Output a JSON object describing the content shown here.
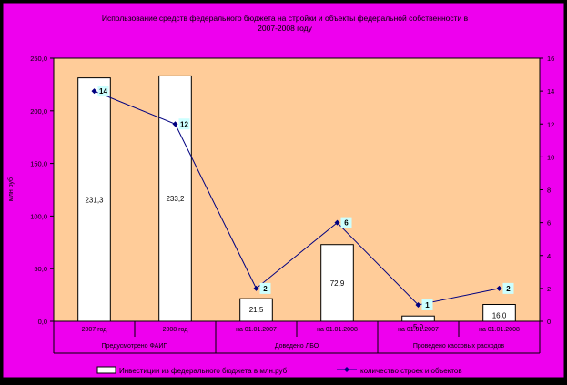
{
  "chart_data": {
    "type": "bar",
    "title_line1": "Использование средств федерального бюджета на стройки и объекты федеральной собственности в",
    "title_line2": "2007-2008 году",
    "ylabel": "млн руб",
    "ylim": [
      0,
      250
    ],
    "y_ticks": [
      "0,0",
      "50,0",
      "100,0",
      "150,0",
      "200,0",
      "250,0"
    ],
    "y2lim": [
      0,
      16
    ],
    "y2_ticks": [
      "0",
      "2",
      "4",
      "6",
      "8",
      "10",
      "12",
      "14",
      "16"
    ],
    "categories": [
      "2007 год",
      "2008 год",
      "на 01.01.2007",
      "на 01.01.2008",
      "на 01.01.2007",
      "на 01.01.2008"
    ],
    "groups": [
      "Предусмотрено ФАИП",
      "Доведено ЛБО",
      "Проведено кассовых расходов"
    ],
    "series": [
      {
        "name": "Инвестиции из федерального бюджета в млн.руб",
        "type": "bar",
        "values": [
          231.3,
          233.2,
          21.5,
          72.9,
          5.0,
          16.0
        ],
        "labels": [
          "231,3",
          "233,2",
          "21,5",
          "72,9",
          "5,0",
          "16,0"
        ]
      },
      {
        "name": "количество строек и объектов",
        "type": "line",
        "axis": "secondary",
        "values": [
          14,
          12,
          2,
          6,
          1,
          2
        ],
        "labels": [
          "14",
          "12",
          "2",
          "6",
          "1",
          "2"
        ]
      }
    ],
    "colors": {
      "outer_background": "#ee00ee",
      "plot_background": "#ffcc99",
      "bar_fill": "#ffffff",
      "line": "#000080",
      "label_box": "#ccffff"
    }
  }
}
